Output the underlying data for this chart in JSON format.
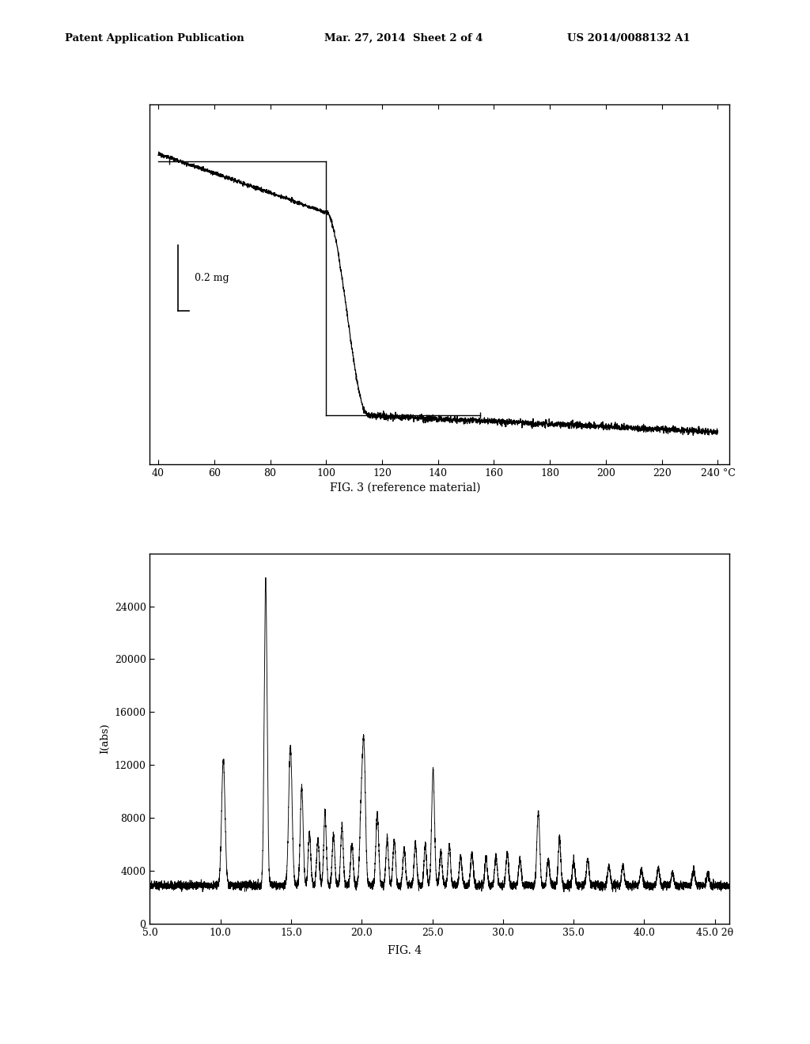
{
  "header_left": "Patent Application Publication",
  "header_mid": "Mar. 27, 2014  Sheet 2 of 4",
  "header_right": "US 2014/0088132 A1",
  "fig3_caption": "FIG. 3 (reference material)",
  "fig4_caption": "FIG. 4",
  "fig3_xlabel": "°C",
  "fig3_xticks": [
    40,
    60,
    80,
    100,
    120,
    140,
    160,
    180,
    200,
    220,
    240
  ],
  "fig3_ylabel_label": "0.2 mg",
  "fig4_xlabel": "2θ",
  "fig4_ylabel": "I(abs)",
  "fig4_xticks": [
    5.0,
    10.0,
    15.0,
    20.0,
    25.0,
    30.0,
    35.0,
    40.0,
    45.0
  ],
  "fig4_yticks": [
    0,
    4000,
    8000,
    12000,
    16000,
    20000,
    24000
  ],
  "background_color": "#ffffff",
  "line_color": "#000000"
}
